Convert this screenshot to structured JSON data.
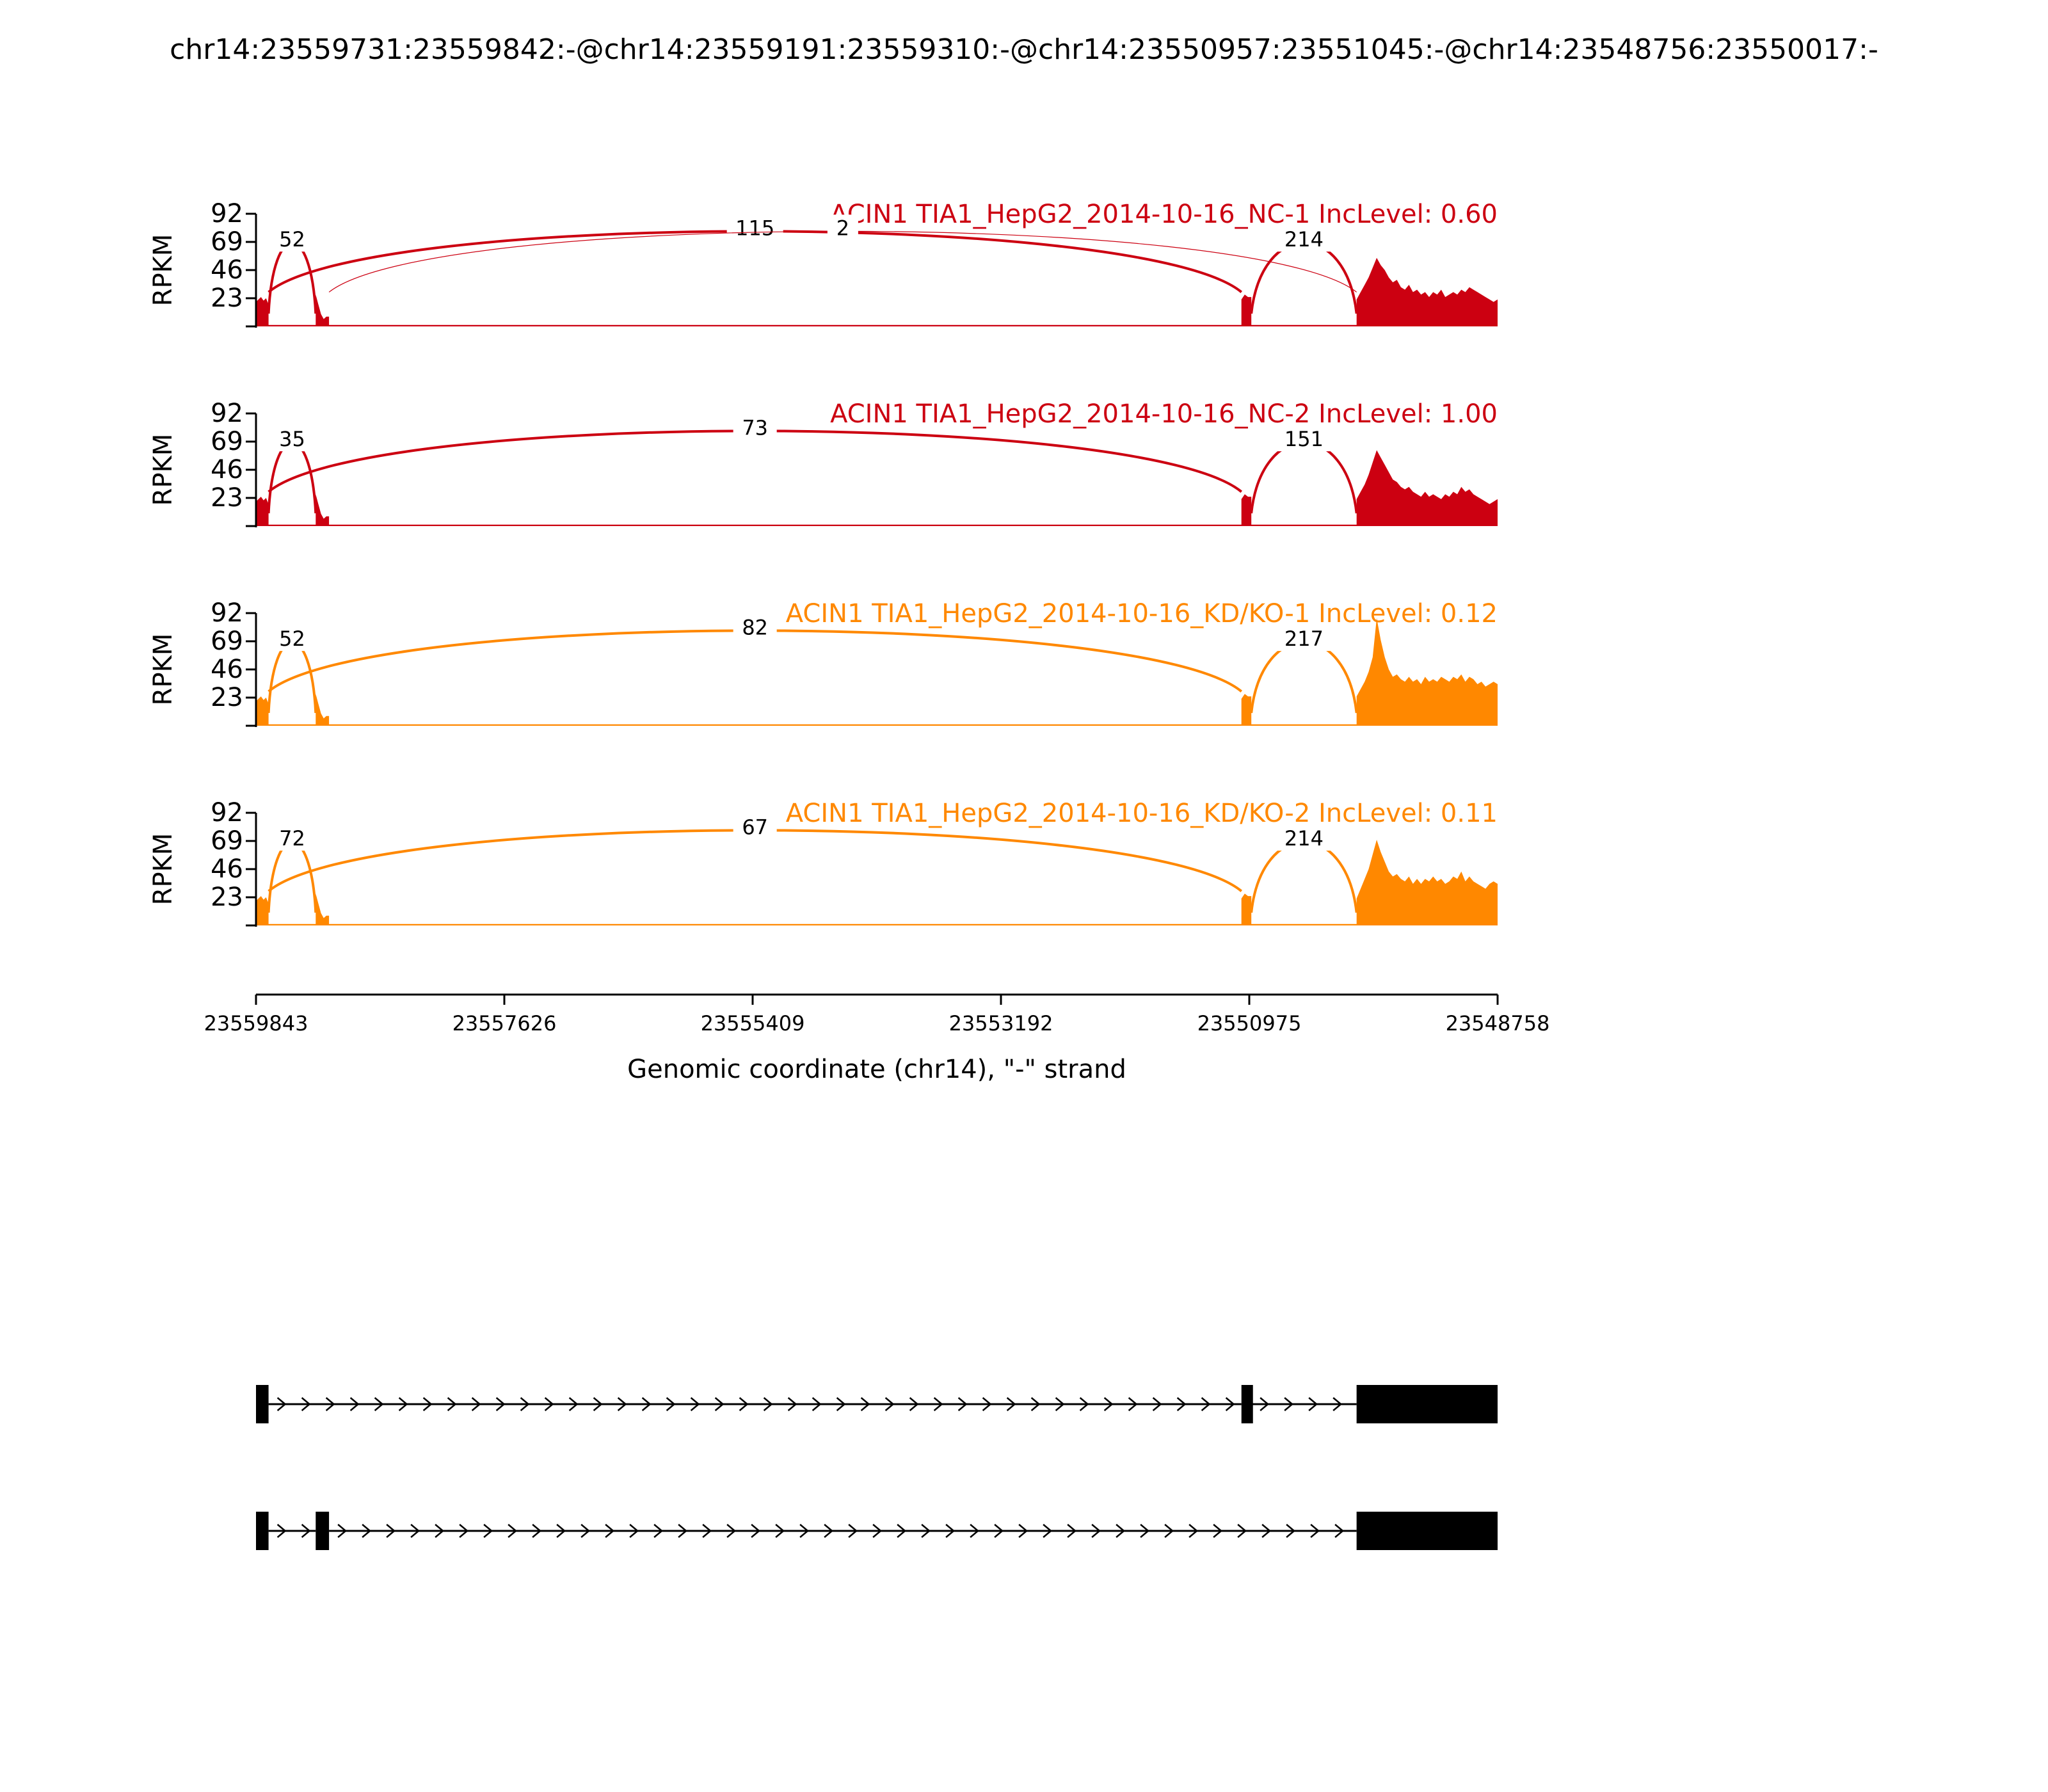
{
  "title": "chr14:23559731:23559842:-@chr14:23559191:23559310:-@chr14:23550957:23551045:-@chr14:23548756:23550017:-",
  "chart_data": {
    "type": "sashimi",
    "xlabel": "Genomic coordinate (chr14), \"-\" strand",
    "ylabel": "RPKM",
    "xticks": [
      "23559843",
      "23557626",
      "23555409",
      "23553192",
      "23550975",
      "23548758"
    ],
    "xlim": [
      23559843,
      23548758
    ],
    "yticks": [
      23,
      46,
      69,
      92
    ],
    "ylim": [
      0,
      92
    ],
    "panels": [
      {
        "label": "ACIN1 TIA1_HepG2_2014-10-16_NC-1 IncLevel: 0.60",
        "color": "#CC0011",
        "junctions": [
          {
            "from": 23559731,
            "to": 23559310,
            "count": "52",
            "side": "top"
          },
          {
            "from": 23559731,
            "to": 23551045,
            "count": "115",
            "side": "top"
          },
          {
            "from": 23559191,
            "to": 23550017,
            "count": "2",
            "side": "top"
          },
          {
            "from": 23550957,
            "to": 23550017,
            "count": "214",
            "side": "top"
          }
        ]
      },
      {
        "label": "ACIN1 TIA1_HepG2_2014-10-16_NC-2 IncLevel: 1.00",
        "color": "#CC0011",
        "junctions": [
          {
            "from": 23559731,
            "to": 23559310,
            "count": "35",
            "side": "top"
          },
          {
            "from": 23559731,
            "to": 23551045,
            "count": "73",
            "side": "top"
          },
          {
            "from": 23550957,
            "to": 23550017,
            "count": "151",
            "side": "top"
          }
        ]
      },
      {
        "label": "ACIN1 TIA1_HepG2_2014-10-16_KD/KO-1 IncLevel: 0.12",
        "color": "#FF8800",
        "junctions": [
          {
            "from": 23559731,
            "to": 23559310,
            "count": "52",
            "side": "top"
          },
          {
            "from": 23559731,
            "to": 23551045,
            "count": "82",
            "side": "top"
          },
          {
            "from": 23550957,
            "to": 23550017,
            "count": "217",
            "side": "top"
          }
        ]
      },
      {
        "label": "ACIN1 TIA1_HepG2_2014-10-16_KD/KO-2 IncLevel: 0.11",
        "color": "#FF8800",
        "junctions": [
          {
            "from": 23559731,
            "to": 23559310,
            "count": "72",
            "side": "top"
          },
          {
            "from": 23559731,
            "to": 23551045,
            "count": "67",
            "side": "top"
          },
          {
            "from": 23550957,
            "to": 23550017,
            "count": "214",
            "side": "top"
          }
        ]
      }
    ],
    "exons": [
      {
        "start": 23559843,
        "end": 23559731
      },
      {
        "start": 23559310,
        "end": 23559191
      },
      {
        "start": 23551045,
        "end": 23550957
      },
      {
        "start": 23550017,
        "end": 23548758
      }
    ],
    "coverage": {
      "exon1": [
        20,
        22,
        24,
        21,
        23,
        18
      ],
      "exon2": [
        26,
        18,
        10,
        6,
        8,
        8
      ],
      "exon3": [
        22,
        26,
        24,
        24
      ],
      "intron_level": 1.2,
      "exon4_by_panel": [
        [
          22,
          28,
          34,
          40,
          48,
          56,
          50,
          46,
          40,
          36,
          38,
          32,
          30,
          34,
          28,
          30,
          26,
          28,
          24,
          28,
          26,
          30,
          24,
          26,
          28,
          26,
          30,
          28,
          32,
          30,
          28,
          26,
          24,
          22,
          20,
          22
        ],
        [
          22,
          28,
          34,
          42,
          52,
          62,
          56,
          50,
          44,
          38,
          36,
          32,
          30,
          32,
          28,
          26,
          24,
          28,
          24,
          26,
          24,
          22,
          26,
          24,
          28,
          26,
          32,
          28,
          30,
          26,
          24,
          22,
          20,
          18,
          20,
          22
        ],
        [
          24,
          30,
          36,
          44,
          56,
          88,
          70,
          56,
          46,
          40,
          42,
          38,
          36,
          40,
          36,
          38,
          34,
          40,
          36,
          38,
          36,
          40,
          38,
          36,
          40,
          38,
          42,
          36,
          40,
          38,
          34,
          36,
          32,
          34,
          36,
          34
        ],
        [
          22,
          30,
          38,
          46,
          58,
          70,
          60,
          52,
          44,
          40,
          42,
          38,
          36,
          40,
          34,
          38,
          34,
          38,
          36,
          40,
          36,
          38,
          34,
          36,
          40,
          38,
          44,
          36,
          40,
          36,
          34,
          32,
          30,
          34,
          36,
          34
        ]
      ]
    },
    "transcripts": [
      {
        "exons": [
          0,
          2,
          3
        ]
      },
      {
        "exons": [
          0,
          1,
          3
        ]
      }
    ]
  }
}
